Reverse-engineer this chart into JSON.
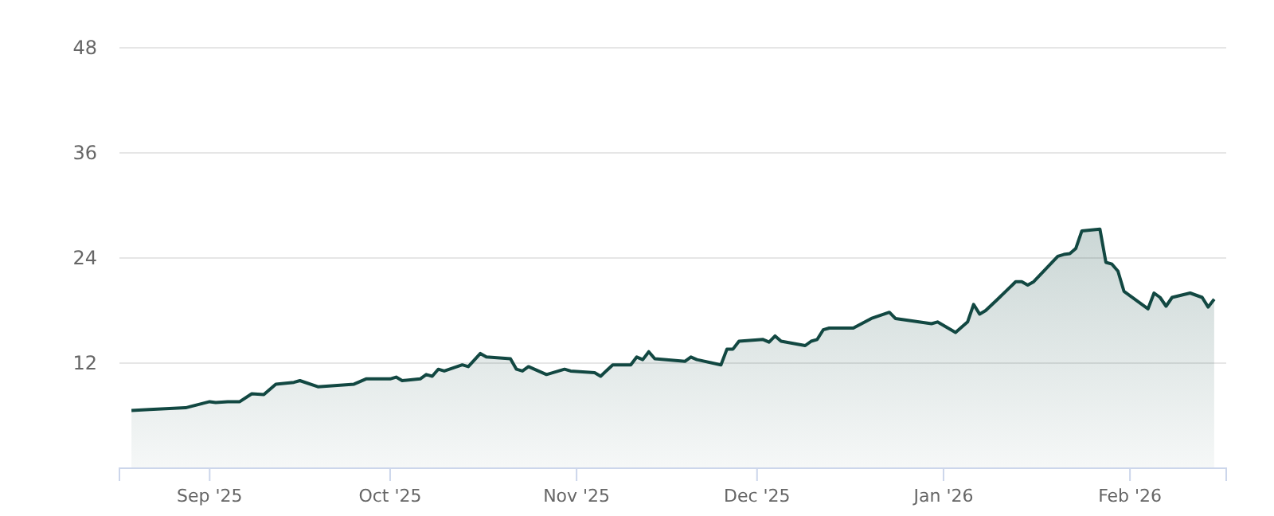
{
  "chart_data": {
    "type": "area",
    "x": [
      "2025-08-19",
      "2025-08-22",
      "2025-08-28",
      "2025-09-01",
      "2025-09-02",
      "2025-09-04",
      "2025-09-06",
      "2025-09-08",
      "2025-09-10",
      "2025-09-12",
      "2025-09-15",
      "2025-09-16",
      "2025-09-19",
      "2025-09-25",
      "2025-09-27",
      "2025-10-01",
      "2025-10-02",
      "2025-10-03",
      "2025-10-06",
      "2025-10-07",
      "2025-10-08",
      "2025-10-09",
      "2025-10-10",
      "2025-10-13",
      "2025-10-14",
      "2025-10-16",
      "2025-10-17",
      "2025-10-21",
      "2025-10-22",
      "2025-10-23",
      "2025-10-24",
      "2025-10-27",
      "2025-10-30",
      "2025-10-31",
      "2025-11-04",
      "2025-11-05",
      "2025-11-07",
      "2025-11-10",
      "2025-11-11",
      "2025-11-12",
      "2025-11-13",
      "2025-11-14",
      "2025-11-19",
      "2025-11-20",
      "2025-11-21",
      "2025-11-25",
      "2025-11-26",
      "2025-11-27",
      "2025-11-28",
      "2025-12-02",
      "2025-12-03",
      "2025-12-04",
      "2025-12-05",
      "2025-12-09",
      "2025-12-10",
      "2025-12-11",
      "2025-12-12",
      "2025-12-13",
      "2025-12-17",
      "2025-12-20",
      "2025-12-23",
      "2025-12-24",
      "2025-12-30",
      "2025-12-31",
      "2026-01-03",
      "2026-01-05",
      "2026-01-06",
      "2026-01-07",
      "2026-01-08",
      "2026-01-10",
      "2026-01-13",
      "2026-01-14",
      "2026-01-15",
      "2026-01-16",
      "2026-01-20",
      "2026-01-21",
      "2026-01-22",
      "2026-01-23",
      "2026-01-24",
      "2026-01-27",
      "2026-01-28",
      "2026-01-29",
      "2026-01-30",
      "2026-01-31",
      "2026-02-04",
      "2026-02-05",
      "2026-02-06",
      "2026-02-07",
      "2026-02-08",
      "2026-02-11",
      "2026-02-13",
      "2026-02-14",
      "2026-02-15"
    ],
    "series": [
      {
        "color": "#124842",
        "values": [
          6.6,
          6.7,
          6.9,
          7.6,
          7.5,
          7.6,
          7.6,
          8.5,
          8.4,
          9.6,
          9.8,
          10.0,
          9.3,
          9.6,
          10.2,
          10.2,
          10.4,
          10.0,
          10.2,
          10.7,
          10.5,
          11.3,
          11.1,
          11.8,
          11.6,
          13.1,
          12.7,
          12.5,
          11.3,
          11.1,
          11.6,
          10.7,
          11.3,
          11.1,
          10.9,
          10.5,
          11.8,
          11.8,
          12.7,
          12.4,
          13.3,
          12.5,
          12.2,
          12.7,
          12.4,
          11.8,
          13.6,
          13.6,
          14.5,
          14.7,
          14.4,
          15.1,
          14.5,
          14.0,
          14.5,
          14.7,
          15.8,
          16.0,
          16.0,
          17.1,
          17.8,
          17.1,
          16.5,
          16.7,
          15.5,
          16.7,
          18.7,
          17.6,
          18.0,
          19.3,
          21.3,
          21.3,
          20.9,
          21.3,
          24.2,
          24.4,
          24.5,
          25.1,
          27.1,
          27.3,
          23.5,
          23.3,
          22.5,
          20.2,
          18.2,
          20.0,
          19.5,
          18.5,
          19.5,
          20.0,
          19.5,
          18.4,
          19.3
        ]
      }
    ],
    "xlim": [
      "2025-08-17",
      "2026-02-17"
    ],
    "xticks": [
      {
        "value": "2025-09-01",
        "label": "Sep '25"
      },
      {
        "value": "2025-10-01",
        "label": "Oct '25"
      },
      {
        "value": "2025-11-01",
        "label": "Nov '25"
      },
      {
        "value": "2025-12-01",
        "label": "Dec '25"
      },
      {
        "value": "2026-01-01",
        "label": "Jan '26"
      },
      {
        "value": "2026-02-01",
        "label": "Feb '26"
      }
    ],
    "ylim": [
      0,
      48
    ],
    "yticks": [
      12,
      24,
      36,
      48
    ],
    "grid": "y"
  }
}
